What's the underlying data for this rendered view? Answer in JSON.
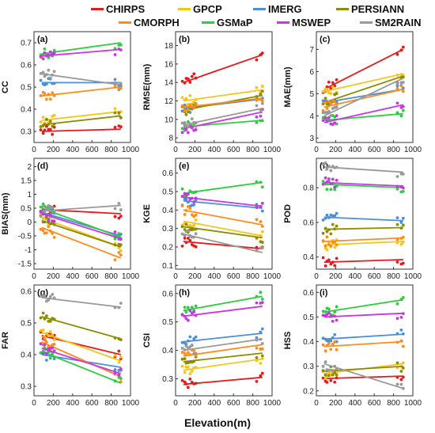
{
  "xlabel": "Elevation(m)",
  "colors": {
    "CHIRPS": "#e41a1c",
    "GPCP": "#f5c518",
    "IMERG": "#4a8fd8",
    "PERSIANN": "#8c8c00",
    "CMORPH": "#ff8c1a",
    "GSMaP": "#2ecc40",
    "MSWEP": "#c837e0",
    "SM2RAIN": "#999999"
  },
  "chart_data": [
    {
      "type": "scatter",
      "panel": "(a)",
      "ylabel": "CC",
      "xlim": [
        0,
        1000
      ],
      "ylim": [
        0.25,
        0.75
      ],
      "yticks": [
        0.3,
        0.4,
        0.5,
        0.6,
        0.7
      ],
      "xticks": [
        0,
        200,
        400,
        600,
        800,
        1000
      ],
      "series": [
        {
          "name": "CHIRPS",
          "line": [
            [
              80,
              0.3
            ],
            [
              900,
              0.31
            ]
          ]
        },
        {
          "name": "GPCP",
          "line": [
            [
              80,
              0.35
            ],
            [
              900,
              0.39
            ]
          ]
        },
        {
          "name": "IMERG",
          "line": [
            [
              80,
              0.52
            ],
            [
              900,
              0.52
            ]
          ]
        },
        {
          "name": "PERSIANN",
          "line": [
            [
              80,
              0.33
            ],
            [
              900,
              0.37
            ]
          ]
        },
        {
          "name": "CMORPH",
          "line": [
            [
              80,
              0.46
            ],
            [
              900,
              0.5
            ]
          ]
        },
        {
          "name": "GSMaP",
          "line": [
            [
              80,
              0.65
            ],
            [
              900,
              0.7
            ]
          ]
        },
        {
          "name": "MSWEP",
          "line": [
            [
              80,
              0.64
            ],
            [
              900,
              0.67
            ]
          ]
        },
        {
          "name": "SM2RAIN",
          "line": [
            [
              80,
              0.56
            ],
            [
              900,
              0.51
            ]
          ]
        }
      ]
    },
    {
      "type": "scatter",
      "panel": "(b)",
      "ylabel": "RMSE(mm)",
      "xlim": [
        0,
        1000
      ],
      "ylim": [
        7.5,
        19.5
      ],
      "yticks": [
        8,
        10,
        12,
        14,
        16,
        18
      ],
      "xticks": [
        0,
        200,
        400,
        600,
        800,
        1000
      ],
      "series": [
        {
          "name": "CHIRPS",
          "line": [
            [
              80,
              14.0
            ],
            [
              900,
              17.0
            ]
          ]
        },
        {
          "name": "GPCP",
          "line": [
            [
              80,
              12.0
            ],
            [
              900,
              13.2
            ]
          ]
        },
        {
          "name": "IMERG",
          "line": [
            [
              80,
              11.2
            ],
            [
              900,
              12.2
            ]
          ]
        },
        {
          "name": "PERSIANN",
          "line": [
            [
              80,
              11.0
            ],
            [
              900,
              12.6
            ]
          ]
        },
        {
          "name": "CMORPH",
          "line": [
            [
              80,
              11.3
            ],
            [
              900,
              12.3
            ]
          ]
        },
        {
          "name": "GSMaP",
          "line": [
            [
              80,
              9.2
            ],
            [
              900,
              9.9
            ]
          ]
        },
        {
          "name": "MSWEP",
          "line": [
            [
              80,
              9.0
            ],
            [
              900,
              10.8
            ]
          ]
        },
        {
          "name": "SM2RAIN",
          "line": [
            [
              80,
              9.4
            ],
            [
              900,
              11.2
            ]
          ]
        }
      ]
    },
    {
      "type": "scatter",
      "panel": "(c)",
      "ylabel": "MAE(mm)",
      "xlim": [
        0,
        1000
      ],
      "ylim": [
        2.8,
        7.8
      ],
      "yticks": [
        3,
        4,
        5,
        6,
        7
      ],
      "xticks": [
        0,
        200,
        400,
        600,
        800,
        1000
      ],
      "series": [
        {
          "name": "CHIRPS",
          "line": [
            [
              80,
              5.2
            ],
            [
              900,
              7.0
            ]
          ]
        },
        {
          "name": "GPCP",
          "line": [
            [
              80,
              5.1
            ],
            [
              900,
              5.9
            ]
          ]
        },
        {
          "name": "IMERG",
          "line": [
            [
              80,
              4.6
            ],
            [
              900,
              5.2
            ]
          ]
        },
        {
          "name": "PERSIANN",
          "line": [
            [
              80,
              4.6
            ],
            [
              900,
              5.8
            ]
          ]
        },
        {
          "name": "CMORPH",
          "line": [
            [
              80,
              4.4
            ],
            [
              900,
              5.2
            ]
          ]
        },
        {
          "name": "GSMaP",
          "line": [
            [
              80,
              3.8
            ],
            [
              900,
              4.1
            ]
          ]
        },
        {
          "name": "MSWEP",
          "line": [
            [
              80,
              3.7
            ],
            [
              900,
              4.5
            ]
          ]
        },
        {
          "name": "SM2RAIN",
          "line": [
            [
              80,
              4.0
            ],
            [
              900,
              5.7
            ]
          ]
        }
      ]
    },
    {
      "type": "scatter",
      "panel": "(d)",
      "ylabel": "BIAS(mm)",
      "xlim": [
        0,
        1000
      ],
      "ylim": [
        -1.7,
        2.3
      ],
      "yticks": [
        -1.5,
        -1.0,
        -0.5,
        0.0,
        0.5,
        1.0,
        1.5,
        2.0
      ],
      "xticks": [
        0,
        200,
        400,
        600,
        800,
        1000
      ],
      "series": [
        {
          "name": "CHIRPS",
          "line": [
            [
              80,
              0.45
            ],
            [
              900,
              0.3
            ]
          ]
        },
        {
          "name": "GPCP",
          "line": [
            [
              80,
              0.15
            ],
            [
              900,
              -0.9
            ]
          ]
        },
        {
          "name": "IMERG",
          "line": [
            [
              80,
              0.35
            ],
            [
              900,
              -0.5
            ]
          ]
        },
        {
          "name": "PERSIANN",
          "line": [
            [
              80,
              0.05
            ],
            [
              900,
              -0.9
            ]
          ]
        },
        {
          "name": "CMORPH",
          "line": [
            [
              80,
              -0.2
            ],
            [
              900,
              -1.3
            ]
          ]
        },
        {
          "name": "GSMaP",
          "line": [
            [
              80,
              0.5
            ],
            [
              900,
              -0.55
            ]
          ]
        },
        {
          "name": "MSWEP",
          "line": [
            [
              80,
              0.3
            ],
            [
              900,
              -0.6
            ]
          ]
        },
        {
          "name": "SM2RAIN",
          "line": [
            [
              80,
              0.4
            ],
            [
              900,
              0.6
            ]
          ]
        }
      ]
    },
    {
      "type": "scatter",
      "panel": "(e)",
      "ylabel": "KGE",
      "xlim": [
        0,
        1000
      ],
      "ylim": [
        0.08,
        0.68
      ],
      "yticks": [
        0.1,
        0.2,
        0.3,
        0.4,
        0.5,
        0.6
      ],
      "xticks": [
        0,
        200,
        400,
        600,
        800,
        1000
      ],
      "series": [
        {
          "name": "CHIRPS",
          "line": [
            [
              80,
              0.23
            ],
            [
              900,
              0.19
            ]
          ]
        },
        {
          "name": "GPCP",
          "line": [
            [
              80,
              0.34
            ],
            [
              900,
              0.26
            ]
          ]
        },
        {
          "name": "IMERG",
          "line": [
            [
              80,
              0.45
            ],
            [
              900,
              0.41
            ]
          ]
        },
        {
          "name": "PERSIANN",
          "line": [
            [
              80,
              0.31
            ],
            [
              900,
              0.25
            ]
          ]
        },
        {
          "name": "CMORPH",
          "line": [
            [
              80,
              0.4
            ],
            [
              900,
              0.32
            ]
          ]
        },
        {
          "name": "GSMaP",
          "line": [
            [
              80,
              0.49
            ],
            [
              900,
              0.55
            ]
          ]
        },
        {
          "name": "MSWEP",
          "line": [
            [
              80,
              0.47
            ],
            [
              900,
              0.42
            ]
          ]
        },
        {
          "name": "SM2RAIN",
          "line": [
            [
              80,
              0.27
            ],
            [
              900,
              0.17
            ]
          ]
        }
      ]
    },
    {
      "type": "scatter",
      "panel": "(f)",
      "ylabel": "POD",
      "xlim": [
        0,
        1000
      ],
      "ylim": [
        0.33,
        0.97
      ],
      "yticks": [
        0.4,
        0.6,
        0.8
      ],
      "xticks": [
        0,
        200,
        400,
        600,
        800,
        1000
      ],
      "series": [
        {
          "name": "CHIRPS",
          "line": [
            [
              80,
              0.37
            ],
            [
              900,
              0.385
            ]
          ]
        },
        {
          "name": "GPCP",
          "line": [
            [
              80,
              0.47
            ],
            [
              900,
              0.49
            ]
          ]
        },
        {
          "name": "IMERG",
          "line": [
            [
              80,
              0.63
            ],
            [
              900,
              0.61
            ]
          ]
        },
        {
          "name": "PERSIANN",
          "line": [
            [
              80,
              0.56
            ],
            [
              900,
              0.57
            ]
          ]
        },
        {
          "name": "CMORPH",
          "line": [
            [
              80,
              0.49
            ],
            [
              900,
              0.51
            ]
          ]
        },
        {
          "name": "GSMaP",
          "line": [
            [
              80,
              0.82
            ],
            [
              900,
              0.8
            ]
          ]
        },
        {
          "name": "MSWEP",
          "line": [
            [
              80,
              0.83
            ],
            [
              900,
              0.81
            ]
          ]
        },
        {
          "name": "SM2RAIN",
          "line": [
            [
              80,
              0.92
            ],
            [
              900,
              0.89
            ]
          ]
        }
      ]
    },
    {
      "type": "scatter",
      "panel": "(g)",
      "ylabel": "FAR",
      "xlim": [
        0,
        1000
      ],
      "ylim": [
        0.27,
        0.62
      ],
      "yticks": [
        0.3,
        0.4,
        0.5,
        0.6
      ],
      "xticks": [
        0,
        200,
        400,
        600,
        800,
        1000
      ],
      "series": [
        {
          "name": "CHIRPS",
          "line": [
            [
              80,
              0.46
            ],
            [
              900,
              0.4
            ]
          ]
        },
        {
          "name": "GPCP",
          "line": [
            [
              80,
              0.47
            ],
            [
              900,
              0.38
            ]
          ]
        },
        {
          "name": "IMERG",
          "line": [
            [
              80,
              0.4
            ],
            [
              900,
              0.36
            ]
          ]
        },
        {
          "name": "PERSIANN",
          "line": [
            [
              80,
              0.52
            ],
            [
              900,
              0.45
            ]
          ]
        },
        {
          "name": "CMORPH",
          "line": [
            [
              80,
              0.44
            ],
            [
              900,
              0.33
            ]
          ]
        },
        {
          "name": "GSMaP",
          "line": [
            [
              80,
              0.41
            ],
            [
              900,
              0.31
            ]
          ]
        },
        {
          "name": "MSWEP",
          "line": [
            [
              80,
              0.42
            ],
            [
              900,
              0.34
            ]
          ]
        },
        {
          "name": "SM2RAIN",
          "line": [
            [
              80,
              0.58
            ],
            [
              900,
              0.55
            ]
          ]
        }
      ]
    },
    {
      "type": "scatter",
      "panel": "(h)",
      "ylabel": "CSI",
      "xlim": [
        0,
        1000
      ],
      "ylim": [
        0.24,
        0.63
      ],
      "yticks": [
        0.3,
        0.4,
        0.5,
        0.6
      ],
      "xticks": [
        0,
        200,
        400,
        600,
        800,
        1000
      ],
      "series": [
        {
          "name": "CHIRPS",
          "line": [
            [
              80,
              0.28
            ],
            [
              900,
              0.305
            ]
          ]
        },
        {
          "name": "GPCP",
          "line": [
            [
              80,
              0.33
            ],
            [
              900,
              0.37
            ]
          ]
        },
        {
          "name": "IMERG",
          "line": [
            [
              80,
              0.43
            ],
            [
              900,
              0.46
            ]
          ]
        },
        {
          "name": "PERSIANN",
          "line": [
            [
              80,
              0.36
            ],
            [
              900,
              0.39
            ]
          ]
        },
        {
          "name": "CMORPH",
          "line": [
            [
              80,
              0.38
            ],
            [
              900,
              0.42
            ]
          ]
        },
        {
          "name": "GSMaP",
          "line": [
            [
              80,
              0.54
            ],
            [
              900,
              0.59
            ]
          ]
        },
        {
          "name": "MSWEP",
          "line": [
            [
              80,
              0.52
            ],
            [
              900,
              0.555
            ]
          ]
        },
        {
          "name": "SM2RAIN",
          "line": [
            [
              80,
              0.4
            ],
            [
              900,
              0.44
            ]
          ]
        }
      ]
    },
    {
      "type": "scatter",
      "panel": "(i)",
      "ylabel": "HSS",
      "xlim": [
        0,
        1000
      ],
      "ylim": [
        0.18,
        0.63
      ],
      "yticks": [
        0.2,
        0.3,
        0.4,
        0.5,
        0.6
      ],
      "xticks": [
        0,
        200,
        400,
        600,
        800,
        1000
      ],
      "series": [
        {
          "name": "CHIRPS",
          "line": [
            [
              80,
              0.25
            ],
            [
              900,
              0.26
            ]
          ]
        },
        {
          "name": "GPCP",
          "line": [
            [
              80,
              0.27
            ],
            [
              900,
              0.31
            ]
          ]
        },
        {
          "name": "IMERG",
          "line": [
            [
              80,
              0.41
            ],
            [
              900,
              0.43
            ]
          ]
        },
        {
          "name": "PERSIANN",
          "line": [
            [
              80,
              0.28
            ],
            [
              900,
              0.3
            ]
          ]
        },
        {
          "name": "CMORPH",
          "line": [
            [
              80,
              0.38
            ],
            [
              900,
              0.4
            ]
          ]
        },
        {
          "name": "GSMaP",
          "line": [
            [
              80,
              0.52
            ],
            [
              900,
              0.57
            ]
          ]
        },
        {
          "name": "MSWEP",
          "line": [
            [
              80,
              0.5
            ],
            [
              900,
              0.515
            ]
          ]
        },
        {
          "name": "SM2RAIN",
          "line": [
            [
              80,
              0.31
            ],
            [
              900,
              0.21
            ]
          ]
        }
      ]
    }
  ]
}
